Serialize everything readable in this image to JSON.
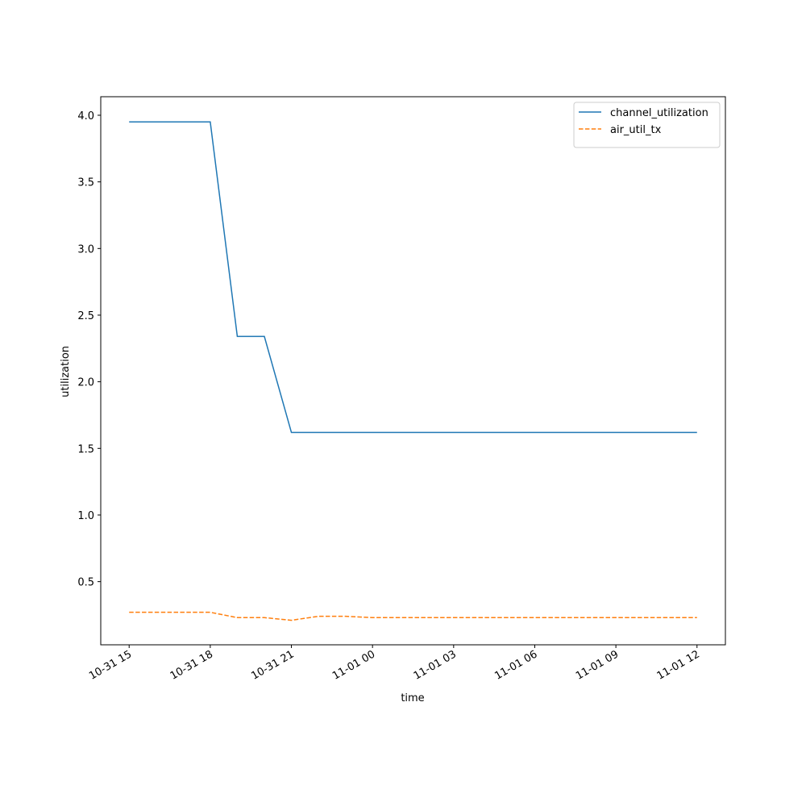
{
  "chart_data": {
    "type": "line",
    "xlabel": "time",
    "ylabel": "utilization",
    "x": [
      "10-31 15",
      "10-31 16",
      "10-31 17",
      "10-31 18",
      "10-31 19",
      "10-31 20",
      "10-31 21",
      "10-31 22",
      "10-31 23",
      "11-01 00",
      "11-01 01",
      "11-01 02",
      "11-01 03",
      "11-01 04",
      "11-01 05",
      "11-01 06",
      "11-01 07",
      "11-01 08",
      "11-01 09",
      "11-01 10",
      "11-01 11",
      "11-01 12"
    ],
    "series": [
      {
        "name": "channel_utilization",
        "color": "#1f77b4",
        "dash": "solid",
        "values": [
          3.95,
          3.95,
          3.95,
          3.95,
          2.34,
          2.34,
          1.62,
          1.62,
          1.62,
          1.62,
          1.62,
          1.62,
          1.62,
          1.62,
          1.62,
          1.62,
          1.62,
          1.62,
          1.62,
          1.62,
          1.62,
          1.62
        ]
      },
      {
        "name": "air_util_tx",
        "color": "#ff7f0e",
        "dash": "dashed",
        "values": [
          0.27,
          0.27,
          0.27,
          0.27,
          0.23,
          0.23,
          0.21,
          0.24,
          0.24,
          0.23,
          0.23,
          0.23,
          0.23,
          0.23,
          0.23,
          0.23,
          0.23,
          0.23,
          0.23,
          0.23,
          0.23,
          0.23
        ]
      }
    ],
    "xlim": [
      "10-31 13:57",
      "11-01 13:03"
    ],
    "xticks": [
      "10-31 15",
      "10-31 18",
      "10-31 21",
      "11-01 00",
      "11-01 03",
      "11-01 06",
      "11-01 09",
      "11-01 12"
    ],
    "ylim": [
      0.026,
      4.139
    ],
    "yticks": [
      0.5,
      {
        "value": 1,
        "label": "1.0"
      },
      1.5,
      {
        "value": 2,
        "label": "2.0"
      },
      2.5,
      {
        "value": 3,
        "label": "3.0"
      },
      3.5,
      {
        "value": 4,
        "label": "4.0"
      }
    ],
    "legend": "upper right",
    "grid": false
  }
}
